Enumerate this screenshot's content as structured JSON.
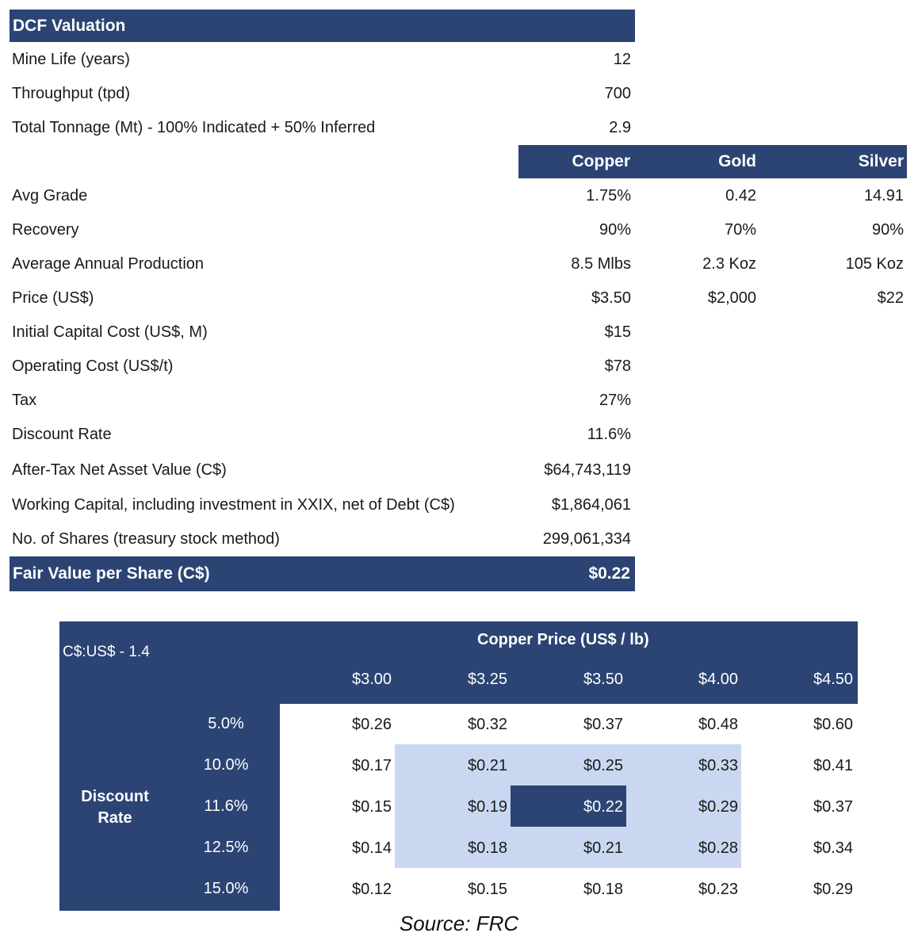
{
  "dcf": {
    "title": "DCF Valuation",
    "rows_top": [
      {
        "label": "Mine Life (years)",
        "value": "12"
      },
      {
        "label": "Throughput (tpd)",
        "value": "700"
      },
      {
        "label": "Total Tonnage (Mt) - 100% Indicated + 50% Inferred",
        "value": "2.9"
      }
    ],
    "metals": [
      "Copper",
      "Gold",
      "Silver"
    ],
    "rows_metal": [
      {
        "label": "Avg Grade",
        "values": [
          "1.75%",
          "0.42",
          "14.91"
        ]
      },
      {
        "label": "Recovery",
        "values": [
          "90%",
          "70%",
          "90%"
        ]
      },
      {
        "label": "Average Annual Production",
        "values": [
          "8.5 Mlbs",
          "2.3 Koz",
          "105 Koz"
        ]
      },
      {
        "label": "Price (US$)",
        "values": [
          "$3.50",
          "$2,000",
          "$22"
        ]
      }
    ],
    "rows_bottom": [
      {
        "label": "Initial Capital Cost (US$, M)",
        "value": "$15"
      },
      {
        "label": "Operating Cost (US$/t)",
        "value": "$78"
      },
      {
        "label": "Tax",
        "value": "27%"
      },
      {
        "label": "Discount Rate",
        "value": "11.6%"
      },
      {
        "label": "After-Tax Net Asset Value (C$)",
        "value": "$64,743,119"
      },
      {
        "label": "Working Capital, including investment in XXIX, net of Debt (C$)",
        "value": "$1,864,061"
      },
      {
        "label": "No. of Shares (treasury stock method)",
        "value": "299,061,334"
      }
    ],
    "fair_value": {
      "label": "Fair Value per Share (C$)",
      "value": "$0.22"
    }
  },
  "sensitivity": {
    "fx_label": "C$:US$ - 1.4",
    "copper_title": "Copper Price (US$ / lb)",
    "prices": [
      "$3.00",
      "$3.25",
      "$3.50",
      "$4.00",
      "$4.50"
    ],
    "discount_label": "Discount Rate",
    "rates": [
      "5.0%",
      "10.0%",
      "11.6%",
      "12.5%",
      "15.0%"
    ],
    "grid": [
      [
        "$0.26",
        "$0.32",
        "$0.37",
        "$0.48",
        "$0.60"
      ],
      [
        "$0.17",
        "$0.21",
        "$0.25",
        "$0.33",
        "$0.41"
      ],
      [
        "$0.15",
        "$0.19",
        "$0.22",
        "$0.29",
        "$0.37"
      ],
      [
        "$0.14",
        "$0.18",
        "$0.21",
        "$0.28",
        "$0.34"
      ],
      [
        "$0.12",
        "$0.15",
        "$0.18",
        "$0.23",
        "$0.29"
      ]
    ]
  },
  "source": "Source: FRC",
  "colors": {
    "navy": "#2b4474",
    "highlight": "#c9d8f0"
  }
}
